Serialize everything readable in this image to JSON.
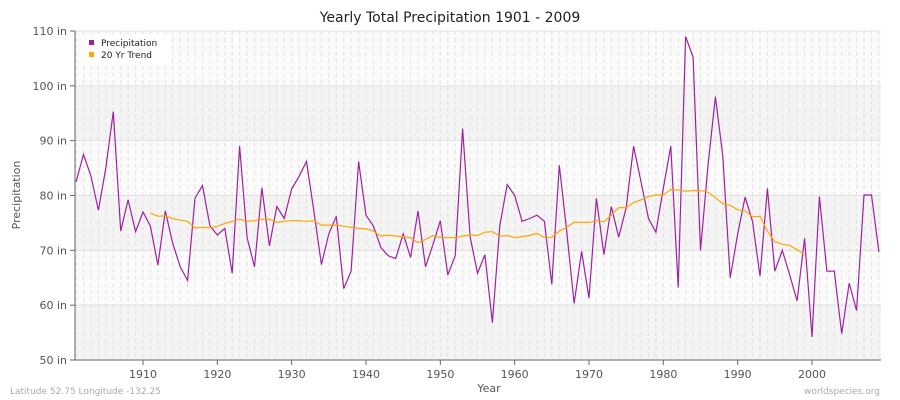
{
  "chart_data": {
    "type": "line",
    "title": "Yearly Total Precipitation 1901 - 2009",
    "xlabel": "Year",
    "ylabel": "Precipitation",
    "xlim": [
      1901,
      2009
    ],
    "ylim": [
      50,
      110
    ],
    "x_ticks": [
      1910,
      1920,
      1930,
      1940,
      1950,
      1960,
      1970,
      1980,
      1990,
      2000
    ],
    "y_ticks": [
      {
        "value": 50,
        "label": "50 in"
      },
      {
        "value": 60,
        "label": "60 in"
      },
      {
        "value": 70,
        "label": "70 in"
      },
      {
        "value": 80,
        "label": "80 in"
      },
      {
        "value": 90,
        "label": "90 in"
      },
      {
        "value": 100,
        "label": "100 in"
      },
      {
        "value": 110,
        "label": "110 in"
      }
    ],
    "grid": true,
    "legend_position": "top-left",
    "series": [
      {
        "name": "Precipitation",
        "color": "#a020a0",
        "start_year": 1901,
        "values": [
          82.5,
          87.5,
          83.5,
          77.3,
          85,
          95.3,
          73.5,
          79.2,
          73.4,
          77,
          74.4,
          67.3,
          77.2,
          71.3,
          67,
          64.5,
          79.5,
          81.8,
          74.5,
          72.8,
          74,
          65.8,
          89,
          72.3,
          67,
          81.4,
          70.8,
          78,
          75.8,
          81.2,
          83.5,
          86.2,
          77,
          67.4,
          73,
          76.2,
          63,
          66.2,
          86.2,
          76.4,
          74.4,
          70.5,
          69,
          68.5,
          73,
          68.7,
          77.2,
          67,
          71,
          75.4,
          65.5,
          69,
          92.2,
          72.5,
          65.8,
          69.2,
          56.8,
          74.5,
          82,
          80,
          75.3,
          75.8,
          76.4,
          75.3,
          63.8,
          85.5,
          73.5,
          60.3,
          69.8,
          61.3,
          79.5,
          69.2,
          78,
          72.4,
          77.8,
          89,
          82.5,
          75.8,
          73.3,
          81.3,
          89,
          63.2,
          109,
          105.2,
          70,
          85.3,
          98,
          87.2,
          65,
          73,
          79.7,
          75.3,
          65.3,
          81.3,
          66.2,
          70,
          65.5,
          60.8,
          72.2,
          54.2,
          79.8,
          66.2,
          66.2,
          54.8,
          64,
          59,
          80.1,
          80.1,
          69.7
        ]
      },
      {
        "name": "20 Yr Trend",
        "color": "#ffa500",
        "start_year": 1911,
        "values": [
          76.8,
          76.2,
          76.3,
          75.8,
          75.5,
          75.3,
          74.1,
          74.2,
          74.1,
          74.4,
          74.9,
          75.3,
          75.7,
          75.3,
          75.4,
          75.7,
          75.7,
          75.1,
          75.3,
          75.4,
          75.4,
          75.3,
          75.4,
          74.6,
          74.6,
          74.6,
          74.4,
          74.2,
          74,
          73.9,
          73.5,
          72.6,
          72.8,
          72.6,
          72.5,
          72.3,
          71.4,
          72,
          72.7,
          72.3,
          72.3,
          72.3,
          72.6,
          72.8,
          72.7,
          73.3,
          73.4,
          72.6,
          72.7,
          72.3,
          72.5,
          72.7,
          73.1,
          72.3,
          72.4,
          73.5,
          74.2,
          75.1,
          75.1,
          75.1,
          75.4,
          75.2,
          76.4,
          77.8,
          77.8,
          78.7,
          79.2,
          79.8,
          80.1,
          80.1,
          81.1,
          81,
          80.8,
          80.9,
          80.9,
          80.6,
          79.6,
          78.5,
          78.2,
          77.4,
          77.2,
          76.1,
          76.2,
          73.5,
          71.6,
          71.1,
          70.9,
          70.1,
          69.2
        ]
      }
    ]
  },
  "footer": {
    "location": "Latitude 52.75 Longitude -132.25",
    "source": "worldspecies.org"
  }
}
